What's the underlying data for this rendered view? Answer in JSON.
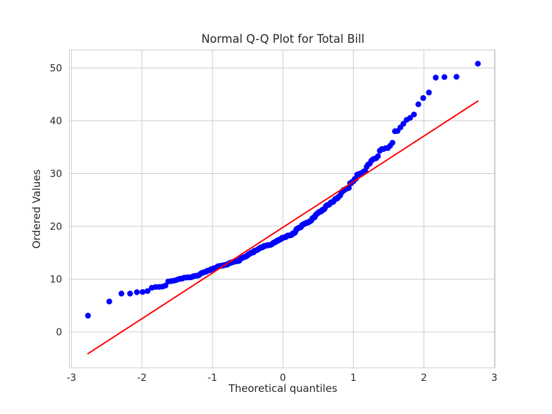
{
  "chart_data": {
    "type": "scatter",
    "subtype": "qq-plot",
    "title": "Normal Q-Q Plot for Total Bill",
    "xlabel": "Theoretical quantiles",
    "ylabel": "Ordered Values",
    "x_ticks": [
      -3,
      -2,
      -1,
      0,
      1,
      2,
      3
    ],
    "y_ticks": [
      0,
      10,
      20,
      30,
      40,
      50
    ],
    "xlim": [
      -3.03,
      3.01
    ],
    "ylim": [
      -6.8,
      53.4
    ],
    "grid": true,
    "legend_position": "none",
    "marker_color": "#0000ff",
    "fit_line_color": "#ff0000",
    "grid_color": "#cccccc",
    "spine_color": "#cccccc",
    "text_color": "#262626",
    "background_color": "#ffffff",
    "n_points": 244,
    "quantile_positions": "filliben",
    "ordered_values": [
      3.07,
      5.75,
      7.25,
      7.25,
      7.51,
      7.56,
      7.74,
      8.35,
      8.51,
      8.52,
      8.58,
      8.77,
      9.55,
      9.6,
      9.68,
      9.78,
      9.94,
      10.07,
      10.09,
      10.27,
      10.29,
      10.33,
      10.33,
      10.34,
      10.51,
      10.59,
      10.63,
      10.65,
      10.77,
      11.02,
      11.17,
      11.24,
      11.35,
      11.38,
      11.59,
      11.61,
      11.69,
      11.87,
      11.87,
      12.02,
      12.03,
      12.16,
      12.26,
      12.43,
      12.46,
      12.48,
      12.54,
      12.54,
      12.6,
      12.66,
      12.69,
      12.74,
      12.76,
      12.9,
      13,
      13.03,
      13.13,
      13.16,
      13.27,
      13.28,
      13.37,
      13.37,
      13.39,
      13.42,
      13.42,
      13.51,
      13.81,
      13.94,
      14,
      14.07,
      14.15,
      14.15,
      14.26,
      14.31,
      14.48,
      14.52,
      14.73,
      14.78,
      14.83,
      15.01,
      15.04,
      15.04,
      15.06,
      15.36,
      15.38,
      15.42,
      15.48,
      15.53,
      15.69,
      15.77,
      15.81,
      15.98,
      15.98,
      16,
      16.04,
      16.21,
      16.27,
      16.29,
      16.31,
      16.32,
      16.4,
      16.43,
      16.43,
      16.45,
      16.47,
      16.49,
      16.58,
      16.66,
      16.82,
      16.93,
      16.97,
      16.99,
      17.07,
      17.26,
      17.29,
      17.29,
      17.46,
      17.47,
      17.51,
      17.59,
      17.78,
      17.81,
      17.82,
      17.89,
      17.92,
      17.92,
      18.04,
      18.15,
      18.24,
      18.26,
      18.28,
      18.29,
      18.29,
      18.35,
      18.43,
      18.64,
      18.69,
      18.71,
      18.78,
      19.08,
      19.44,
      19.49,
      19.65,
      19.65,
      19.77,
      19.81,
      19.82,
      20.08,
      20.27,
      20.29,
      20.45,
      20.49,
      20.53,
      20.65,
      20.65,
      20.69,
      20.76,
      20.9,
      20.92,
      21.01,
      21.16,
      21.5,
      21.58,
      21.7,
      21.7,
      22.12,
      22.23,
      22.42,
      22.49,
      22.67,
      22.75,
      22.76,
      22.82,
      23.1,
      23.1,
      23.17,
      23.33,
      23.68,
      23.95,
      24.01,
      24.06,
      24.08,
      24.27,
      24.52,
      24.55,
      24.59,
      24.71,
      25,
      25.21,
      25.28,
      25.29,
      25.56,
      25.71,
      25.89,
      26.41,
      26.59,
      26.86,
      26.88,
      27.05,
      27.18,
      27.2,
      27.28,
      28.15,
      28.17,
      28.44,
      28.55,
      28.97,
      29.03,
      29.8,
      29.85,
      29.93,
      30.06,
      30.14,
      30.4,
      30.46,
      31.27,
      31.71,
      31.85,
      32.4,
      32.68,
      32.83,
      32.9,
      33.28,
      34.3,
      34.63,
      34.65,
      34.81,
      34.83,
      35.26,
      35.83,
      38.01,
      38.07,
      38.73,
      39.42,
      40.17,
      40.55,
      41.19,
      43.11,
      44.3,
      45.35,
      48.17,
      48.27,
      48.33,
      50.81
    ],
    "fit_line": {
      "slope": 8.65,
      "intercept": 19.8,
      "x_start": -2.78,
      "x_end": 2.78
    }
  }
}
